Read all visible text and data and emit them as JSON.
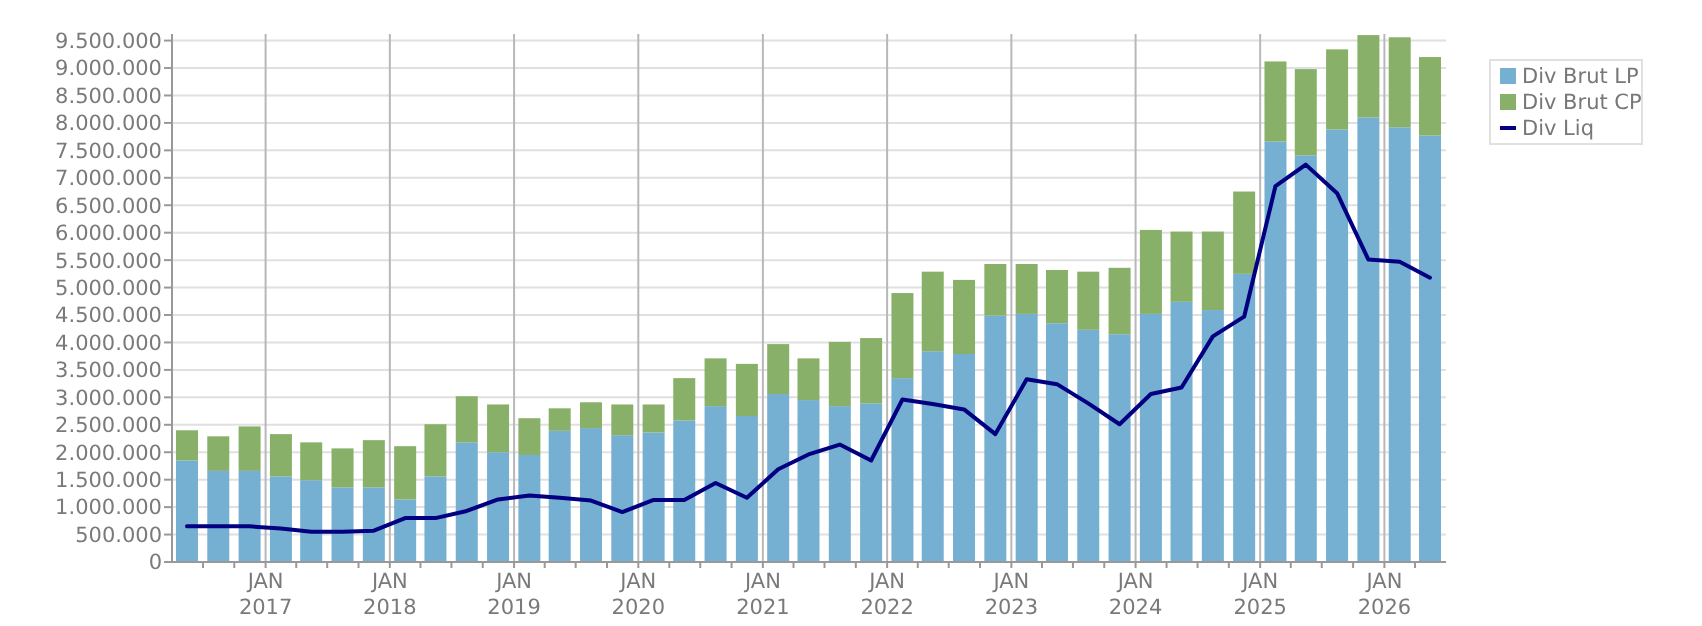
{
  "chart_data": {
    "type": "bar",
    "stacked": true,
    "grid": true,
    "legend": "top right",
    "x": [
      "2016-05-15",
      "2016-08-15",
      "2016-11-15",
      "2017-02-15",
      "2017-05-15",
      "2017-08-15",
      "2017-11-15",
      "2018-02-15",
      "2018-05-15",
      "2018-08-15",
      "2018-11-15",
      "2019-02-15",
      "2019-05-15",
      "2019-08-15",
      "2019-11-15",
      "2020-02-15",
      "2020-05-15",
      "2020-08-15",
      "2020-11-15",
      "2021-02-15",
      "2021-05-15",
      "2021-08-15",
      "2021-11-15",
      "2022-02-15",
      "2022-05-15",
      "2022-08-15",
      "2022-11-15",
      "2023-02-15",
      "2023-05-15",
      "2023-08-15",
      "2023-11-15",
      "2024-02-15",
      "2024-05-15",
      "2024-08-15",
      "2024-11-15",
      "2025-02-15",
      "2025-05-15",
      "2025-08-15",
      "2025-11-15",
      "2026-02-15",
      "2026-05-15"
    ],
    "xlim": [
      "2016-04-01",
      "2026-07-01"
    ],
    "xticks": [
      {
        "value": "2016-07-01",
        "label": null
      },
      {
        "value": "2016-10-01",
        "label": null
      },
      {
        "value": "2017-01-01",
        "label": "JAN\n2017"
      },
      {
        "value": "2017-04-01",
        "label": null
      },
      {
        "value": "2017-07-01",
        "label": null
      },
      {
        "value": "2017-10-01",
        "label": null
      },
      {
        "value": "2018-01-01",
        "label": "JAN\n2018"
      },
      {
        "value": "2018-04-01",
        "label": null
      },
      {
        "value": "2018-07-01",
        "label": null
      },
      {
        "value": "2018-10-01",
        "label": null
      },
      {
        "value": "2019-01-01",
        "label": "JAN\n2019"
      },
      {
        "value": "2019-04-01",
        "label": null
      },
      {
        "value": "2019-07-01",
        "label": null
      },
      {
        "value": "2019-10-01",
        "label": null
      },
      {
        "value": "2020-01-01",
        "label": "JAN\n2020"
      },
      {
        "value": "2020-04-01",
        "label": null
      },
      {
        "value": "2020-07-01",
        "label": null
      },
      {
        "value": "2020-10-01",
        "label": null
      },
      {
        "value": "2021-01-01",
        "label": "JAN\n2021"
      },
      {
        "value": "2021-04-01",
        "label": null
      },
      {
        "value": "2021-07-01",
        "label": null
      },
      {
        "value": "2021-10-01",
        "label": null
      },
      {
        "value": "2022-01-01",
        "label": "JAN\n2022"
      },
      {
        "value": "2022-04-01",
        "label": null
      },
      {
        "value": "2022-07-01",
        "label": null
      },
      {
        "value": "2022-10-01",
        "label": null
      },
      {
        "value": "2023-01-01",
        "label": "JAN\n2023"
      },
      {
        "value": "2023-04-01",
        "label": null
      },
      {
        "value": "2023-07-01",
        "label": null
      },
      {
        "value": "2023-10-01",
        "label": null
      },
      {
        "value": "2024-01-01",
        "label": "JAN\n2024"
      },
      {
        "value": "2024-04-01",
        "label": null
      },
      {
        "value": "2024-07-01",
        "label": null
      },
      {
        "value": "2024-10-01",
        "label": null
      },
      {
        "value": "2025-01-01",
        "label": "JAN\n2025"
      },
      {
        "value": "2025-04-01",
        "label": null
      },
      {
        "value": "2025-07-01",
        "label": null
      },
      {
        "value": "2025-10-01",
        "label": null
      },
      {
        "value": "2026-01-01",
        "label": "JAN\n2026"
      },
      {
        "value": "2026-04-01",
        "label": null
      }
    ],
    "ylim": [
      0,
      9620000
    ],
    "yticks": [
      {
        "value": 0,
        "label": "0"
      },
      {
        "value": 500000,
        "label": "500.000"
      },
      {
        "value": 1000000,
        "label": "1.000.000"
      },
      {
        "value": 1500000,
        "label": "1.500.000"
      },
      {
        "value": 2000000,
        "label": "2.000.000"
      },
      {
        "value": 2500000,
        "label": "2.500.000"
      },
      {
        "value": 3000000,
        "label": "3.000.000"
      },
      {
        "value": 3500000,
        "label": "3.500.000"
      },
      {
        "value": 4000000,
        "label": "4.000.000"
      },
      {
        "value": 4500000,
        "label": "4.500.000"
      },
      {
        "value": 5000000,
        "label": "5.000.000"
      },
      {
        "value": 5500000,
        "label": "5.500.000"
      },
      {
        "value": 6000000,
        "label": "6.000.000"
      },
      {
        "value": 6500000,
        "label": "6.500.000"
      },
      {
        "value": 7000000,
        "label": "7.000.000"
      },
      {
        "value": 7500000,
        "label": "7.500.000"
      },
      {
        "value": 8000000,
        "label": "8.000.000"
      },
      {
        "value": 8500000,
        "label": "8.500.000"
      },
      {
        "value": 9000000,
        "label": "9.000.000"
      },
      {
        "value": 9500000,
        "label": "9.500.000"
      }
    ],
    "series": [
      {
        "name": "Div Brut LP",
        "type": "bar",
        "color": "#75afd1",
        "values": [
          1850000,
          1660000,
          1660000,
          1560000,
          1490000,
          1360000,
          1360000,
          1140000,
          1560000,
          2180000,
          2000000,
          1950000,
          2390000,
          2440000,
          2310000,
          2360000,
          2580000,
          2840000,
          2660000,
          3060000,
          2950000,
          2840000,
          2890000,
          3350000,
          3840000,
          3790000,
          4490000,
          4520000,
          4350000,
          4230000,
          4150000,
          4520000,
          4740000,
          4590000,
          5250000,
          7660000,
          7410000,
          7880000,
          8100000,
          7920000,
          7770000
        ]
      },
      {
        "name": "Div Brut CP",
        "type": "bar",
        "color": "#88b068",
        "values": [
          550000,
          630000,
          810000,
          770000,
          690000,
          710000,
          860000,
          970000,
          950000,
          840000,
          870000,
          670000,
          410000,
          470000,
          560000,
          510000,
          770000,
          870000,
          950000,
          910000,
          760000,
          1170000,
          1190000,
          1550000,
          1450000,
          1350000,
          940000,
          910000,
          970000,
          1060000,
          1210000,
          1530000,
          1280000,
          1430000,
          1500000,
          1460000,
          1570000,
          1460000,
          1500000,
          1640000,
          1430000
        ]
      },
      {
        "name": "Div Liq",
        "type": "line",
        "color": "#000080",
        "values": [
          650000,
          650000,
          650000,
          610000,
          550000,
          550000,
          570000,
          800000,
          800000,
          930000,
          1140000,
          1210000,
          1170000,
          1120000,
          910000,
          1130000,
          1130000,
          1440000,
          1170000,
          1690000,
          1960000,
          2140000,
          1850000,
          2960000,
          2880000,
          2780000,
          2330000,
          3330000,
          3240000,
          2890000,
          2510000,
          3060000,
          3180000,
          4110000,
          4470000,
          6850000,
          7240000,
          6720000,
          5510000,
          5470000,
          5180000
        ]
      }
    ]
  }
}
